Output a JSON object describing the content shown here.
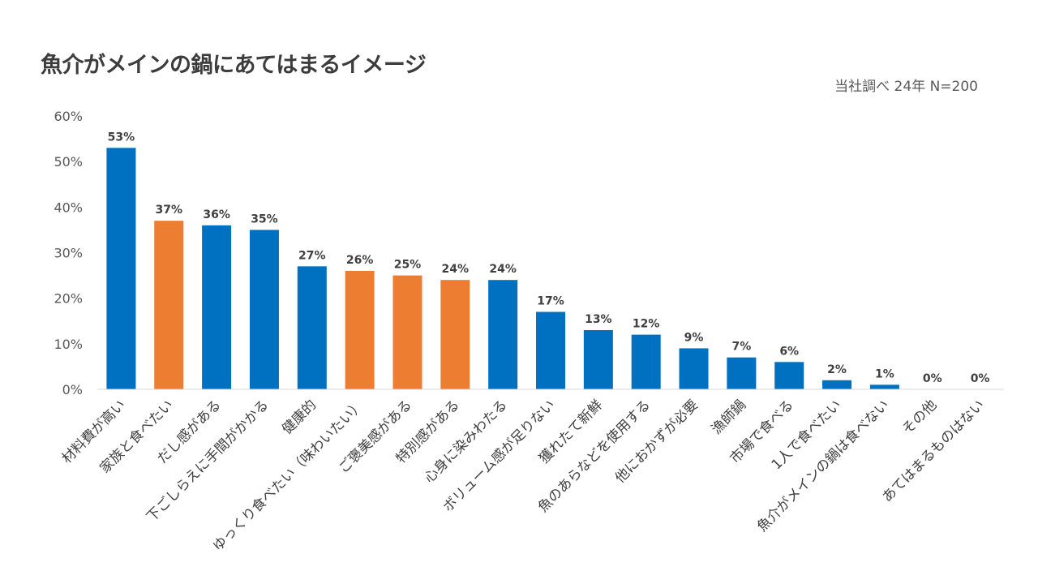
{
  "title": "魚介がメインの鍋にあてはまるイメージ",
  "source_note": "当社調べ 24年 N=200",
  "colors": {
    "default": "#0070C0",
    "highlight": "#ED7D31"
  },
  "chart_data": {
    "type": "bar",
    "title": "魚介がメインの鍋にあてはまるイメージ",
    "xlabel": "",
    "ylabel": "",
    "ylim": [
      0,
      60
    ],
    "yticks": [
      0,
      10,
      20,
      30,
      40,
      50,
      60
    ],
    "ytick_labels": [
      "0%",
      "10%",
      "20%",
      "30%",
      "40%",
      "50%",
      "60%"
    ],
    "grid": false,
    "legend": "none",
    "categories": [
      "材料費が高い",
      "家族と食べたい",
      "だし感がある",
      "下ごしらえに手間がかかる",
      "健康的",
      "ゆっくり食べたい（味わいたい）",
      "ご褒美感がある",
      "特別感がある",
      "心身に染みわたる",
      "ボリューム感が足りない",
      "獲れたて新鮮",
      "魚のあらなどを使用する",
      "他におかずが必要",
      "漁師鍋",
      "市場で食べる",
      "1人で食べたい",
      "魚介がメインの鍋は食べない",
      "その他",
      "あてはまるものはない"
    ],
    "values": [
      53,
      37,
      36,
      35,
      27,
      26,
      25,
      24,
      24,
      17,
      13,
      12,
      9,
      7,
      6,
      2,
      1,
      0,
      0
    ],
    "value_labels": [
      "53%",
      "37%",
      "36%",
      "35%",
      "27%",
      "26%",
      "25%",
      "24%",
      "24%",
      "17%",
      "13%",
      "12%",
      "9%",
      "7%",
      "6%",
      "2%",
      "1%",
      "0%",
      "0%"
    ],
    "bar_colors": [
      "#0070C0",
      "#ED7D31",
      "#0070C0",
      "#0070C0",
      "#0070C0",
      "#ED7D31",
      "#ED7D31",
      "#ED7D31",
      "#0070C0",
      "#0070C0",
      "#0070C0",
      "#0070C0",
      "#0070C0",
      "#0070C0",
      "#0070C0",
      "#0070C0",
      "#0070C0",
      "#0070C0",
      "#0070C0"
    ]
  }
}
